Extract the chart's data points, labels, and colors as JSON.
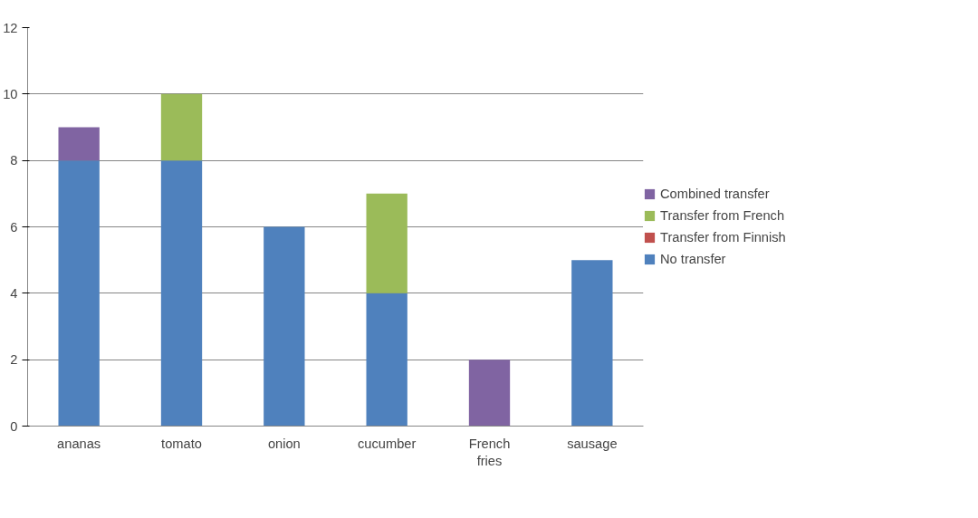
{
  "chart_data": {
    "type": "bar",
    "stacked": true,
    "categories": [
      "ananas",
      "tomato",
      "onion",
      "cucumber",
      "French fries",
      "sausage"
    ],
    "series": [
      {
        "name": "No transfer",
        "color": "#4f81bd",
        "values": [
          8,
          8,
          6,
          4,
          0,
          5
        ]
      },
      {
        "name": "Transfer from Finnish",
        "color": "#c0504d",
        "values": [
          0,
          0,
          0,
          0,
          0,
          0
        ]
      },
      {
        "name": "Transfer from French",
        "color": "#9bbb59",
        "values": [
          0,
          2,
          0,
          3,
          0,
          0
        ]
      },
      {
        "name": "Combined transfer",
        "color": "#8064a2",
        "values": [
          1,
          0,
          0,
          0,
          2,
          0
        ]
      }
    ],
    "ylim": [
      0,
      12
    ],
    "yticks": [
      0,
      2,
      4,
      6,
      8,
      10,
      12
    ],
    "grid": "y",
    "legend": "right"
  }
}
